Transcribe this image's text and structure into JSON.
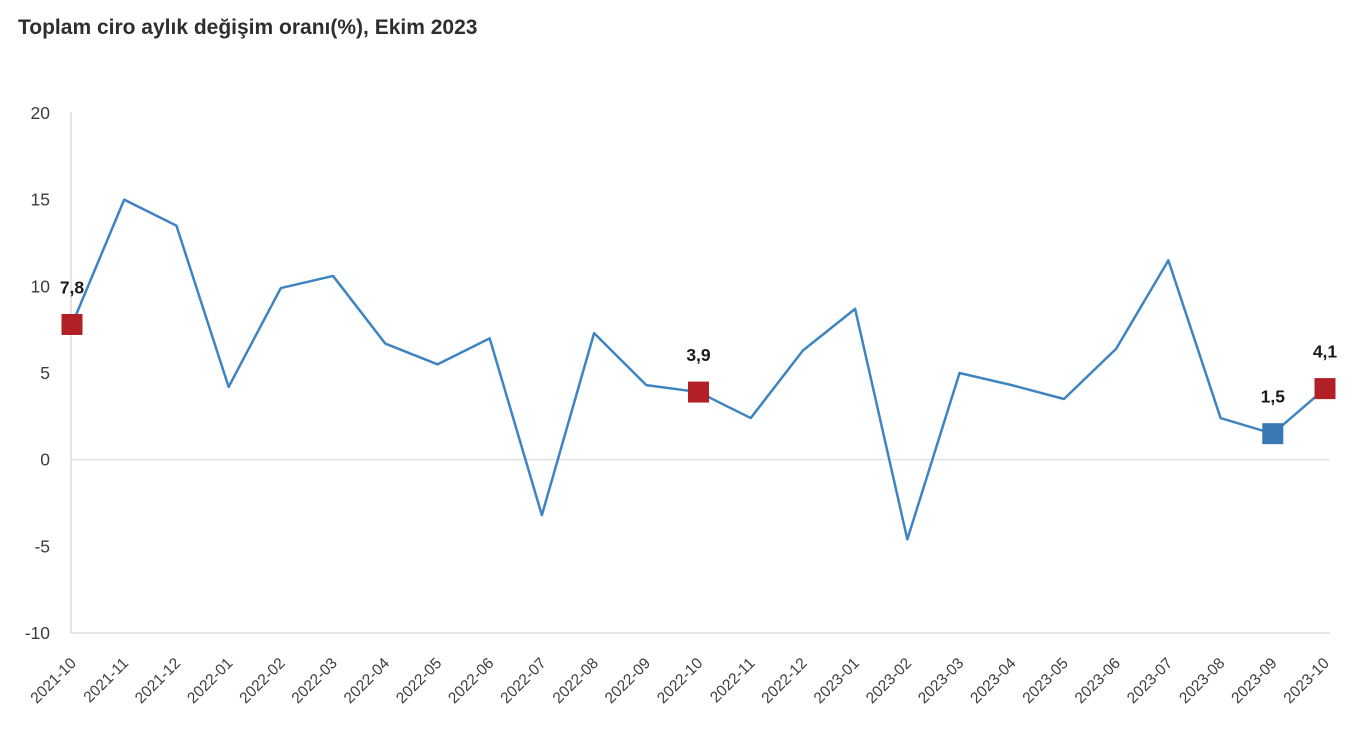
{
  "title": "Toplam ciro aylık değişim oranı(%), Ekim 2023",
  "chart_data": {
    "type": "line",
    "title": "Toplam ciro aylık değişim oranı(%), Ekim 2023",
    "categories": [
      "2021-10",
      "2021-11",
      "2021-12",
      "2022-01",
      "2022-02",
      "2022-03",
      "2022-04",
      "2022-05",
      "2022-06",
      "2022-07",
      "2022-08",
      "2022-09",
      "2022-10",
      "2022-11",
      "2022-12",
      "2023-01",
      "2023-02",
      "2023-03",
      "2023-04",
      "2023-05",
      "2023-06",
      "2023-07",
      "2023-08",
      "2023-09",
      "2023-10"
    ],
    "values": [
      7.8,
      15.0,
      13.5,
      4.2,
      9.9,
      10.6,
      6.7,
      5.5,
      7.0,
      -3.2,
      7.3,
      4.3,
      3.9,
      2.4,
      6.3,
      8.7,
      -4.6,
      5.0,
      4.3,
      3.5,
      6.4,
      11.5,
      2.4,
      1.5,
      4.1
    ],
    "ylim": [
      -10,
      20
    ],
    "yticks": [
      20,
      15,
      10,
      5,
      0,
      -5,
      -10
    ],
    "xlabel": "",
    "ylabel": "",
    "legend": "none",
    "grid": "zero line only",
    "x_label_rotation_deg": -45,
    "decimal_separator": ",",
    "labeled_points": [
      {
        "category": "2021-10",
        "value": 7.8,
        "label": "7,8",
        "marker": "red"
      },
      {
        "category": "2022-10",
        "value": 3.9,
        "label": "3,9",
        "marker": "red"
      },
      {
        "category": "2023-09",
        "value": 1.5,
        "label": "1,5",
        "marker": "blue"
      },
      {
        "category": "2023-10",
        "value": 4.1,
        "label": "4,1",
        "marker": "red"
      }
    ],
    "colors": {
      "line": "#3e84c2",
      "marker_red": "#b22025",
      "marker_blue": "#3878b4",
      "axis": "#d5d5d5",
      "zero_line": "#e2e2e2",
      "tick_label": "#3c3c3c",
      "data_label": "#1a1a1a",
      "title": "#2e2e2e",
      "background": "#ffffff"
    }
  }
}
